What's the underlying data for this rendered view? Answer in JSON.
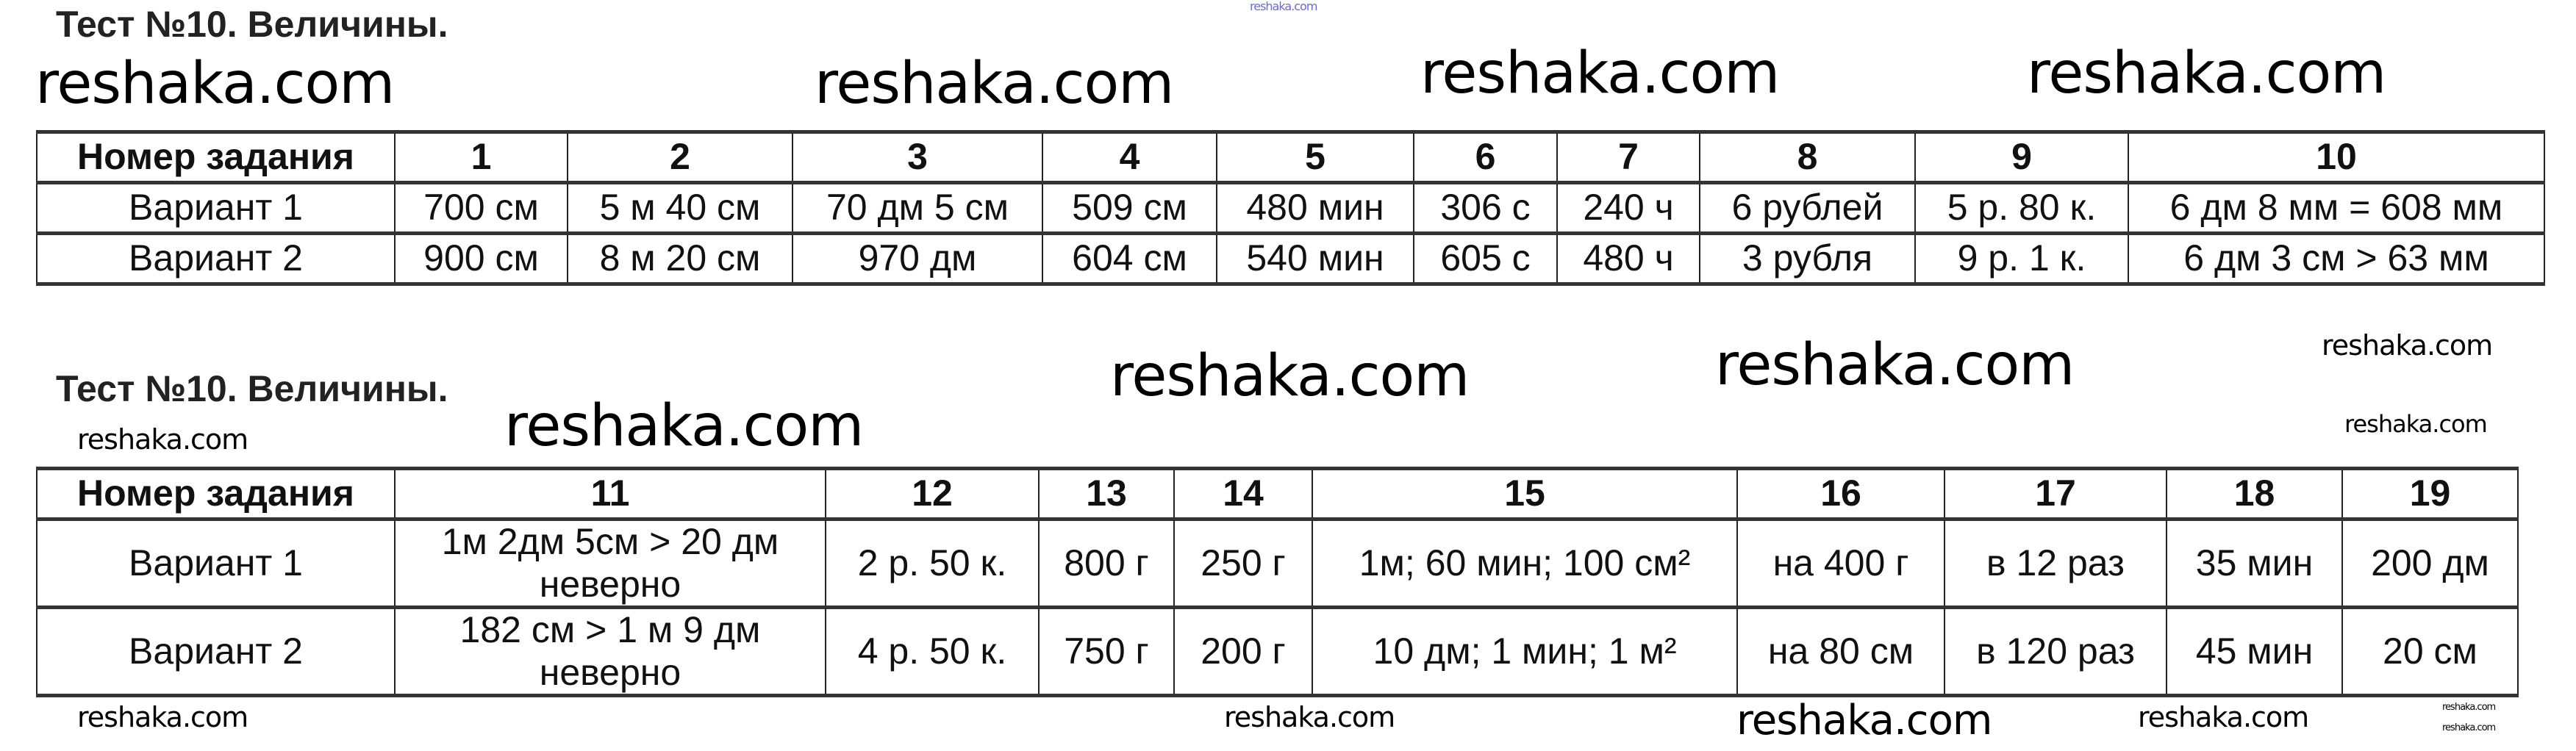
{
  "top_watermark": "reshaka.com",
  "test1": {
    "title": "Тест №10. Величины.",
    "header": [
      "Номер задания",
      "1",
      "2",
      "3",
      "4",
      "5",
      "6",
      "7",
      "8",
      "9",
      "10"
    ],
    "rows": [
      [
        "Вариант 1",
        "700 см",
        "5 м 40 см",
        "70 дм 5 см",
        "509 см",
        "480 мин",
        "306 с",
        "240 ч",
        "6 рублей",
        "5 р. 80 к.",
        "6 дм 8 мм = 608 мм"
      ],
      [
        "Вариант 2",
        "900 см",
        "8 м 20 см",
        "970 дм",
        "604 см",
        "540 мин",
        "605 с",
        "480 ч",
        "3 рубля",
        "9 р. 1 к.",
        "6 дм 3 см > 63 мм"
      ]
    ]
  },
  "test2": {
    "title": "Тест №10. Величины.",
    "header": [
      "Номер задания",
      "11",
      "12",
      "13",
      "14",
      "15",
      "16",
      "17",
      "18",
      "19"
    ],
    "rows": [
      [
        "Вариант 1",
        "1м 2дм 5см > 20 дм\nневерно",
        "2 р. 50 к.",
        "800 г",
        "250 г",
        "1м; 60 мин; 100 см²",
        "на 400 г",
        "в 12 раз",
        "35 мин",
        "200 дм"
      ],
      [
        "Вариант 2",
        "182 см > 1 м 9 дм\nневерно",
        "4 р. 50 к.",
        "750 г",
        "200 г",
        "10 дм; 1 мин; 1 м²",
        "на 80 см",
        "в 120 раз",
        "45 мин",
        "20 см"
      ]
    ]
  },
  "watermarks": [
    "reshaka.com",
    "reshaka.com",
    "reshaka.com",
    "reshaka.com",
    "reshaka.com",
    "reshaka.com",
    "reshaka.com",
    "reshaka.com",
    "reshaka.com",
    "reshaka.com",
    "reshaka.com",
    "reshaka.com",
    "reshaka.com",
    "reshaka.com",
    "reshaka.com",
    "reshaka.com"
  ]
}
